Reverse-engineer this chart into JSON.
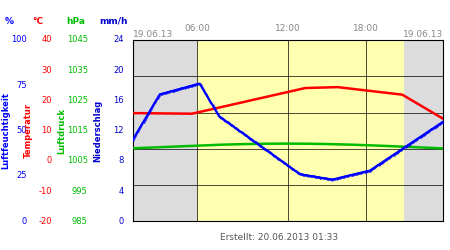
{
  "title_left": "19.06.13",
  "title_right": "19.06.13",
  "footer": "Erstellt: 20.06.2013 01:33",
  "xtick_labels": [
    "06:00",
    "12:00",
    "18:00"
  ],
  "bg_gray_color": "#dcdcdc",
  "bg_yellow_color": "#ffffb0",
  "border_color": "#000000",
  "grid_color": "#000000",
  "ylabel_lf": "Luftfeuchtigkeit",
  "ylabel_temp": "Temperatur",
  "ylabel_lp": "Luftdruck",
  "ylabel_ns": "Niederschlag",
  "col_lf": "#0000ff",
  "col_temp": "#ff0000",
  "col_lp": "#00bb00",
  "col_ns": "#0000cc",
  "y_lf_min": 0,
  "y_lf_max": 100,
  "y_temp_min": -20,
  "y_temp_max": 40,
  "y_lp_min": 985,
  "y_lp_max": 1045,
  "y_ns_min": 0,
  "y_ns_max": 24,
  "x_min": 0,
  "x_max": 288,
  "gray_region1": [
    0,
    60
  ],
  "yellow_region": [
    60,
    252
  ],
  "gray_region2": [
    252,
    288
  ],
  "lf_ticks": [
    0,
    25,
    50,
    75,
    100
  ],
  "temp_ticks": [
    -20,
    -10,
    0,
    10,
    20,
    30,
    40
  ],
  "lp_ticks": [
    985,
    995,
    1005,
    1015,
    1025,
    1035,
    1045
  ],
  "ns_ticks": [
    0,
    4,
    8,
    12,
    16,
    20,
    24
  ],
  "unit_lf": "%",
  "unit_temp": "°C",
  "unit_lp": "hPa",
  "unit_ns": "mm/h"
}
